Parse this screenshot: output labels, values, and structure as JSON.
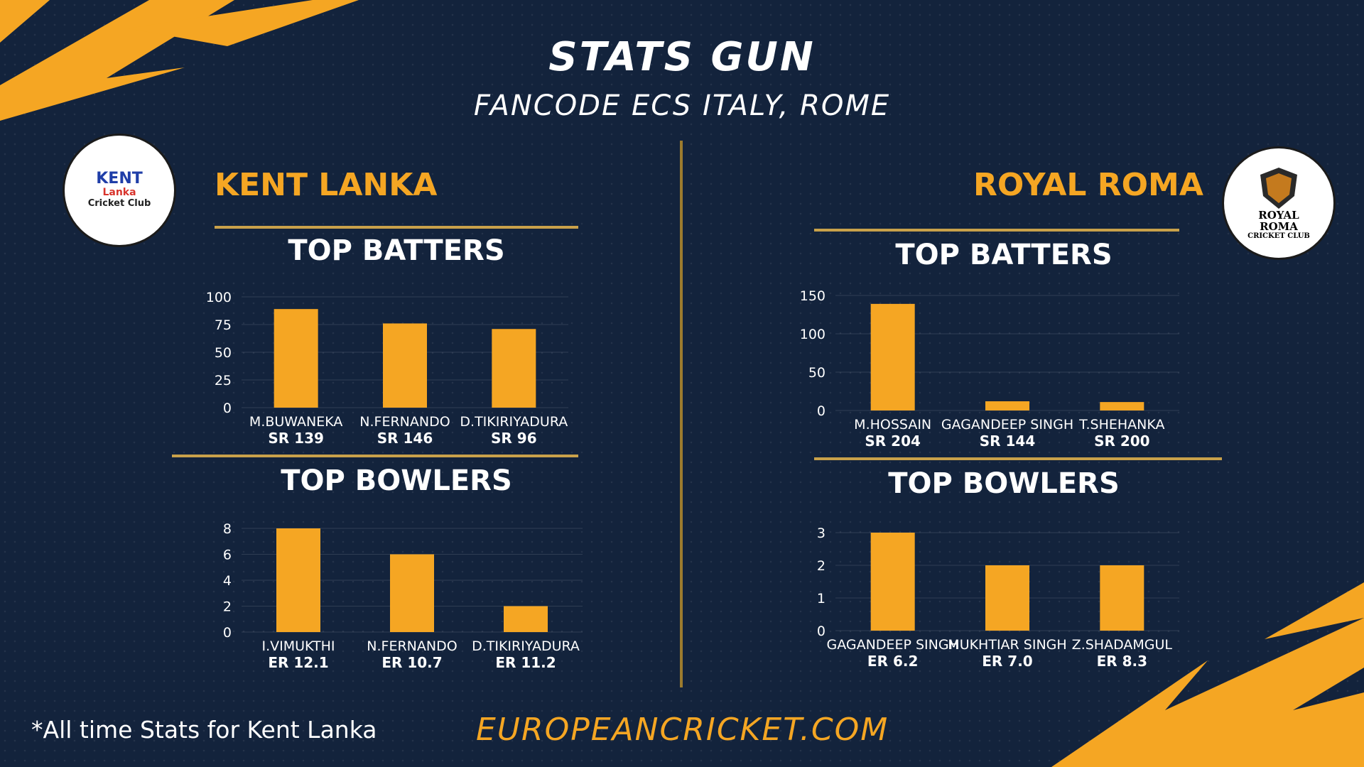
{
  "header": {
    "title": "STATS GUN",
    "subtitle": "FANCODE ECS ITALY, ROME"
  },
  "colors": {
    "background": "#13233c",
    "accent": "#f5a623",
    "rule": "#c9a14a",
    "text": "#ffffff"
  },
  "teams": {
    "left": {
      "name": "KENT LANKA",
      "logo": {
        "line1": "KENT",
        "line2": "Lanka",
        "line3": "Cricket Club"
      }
    },
    "right": {
      "name": "ROYAL ROMA",
      "logo": {
        "line1": "ROYAL",
        "line2": "ROMA",
        "line3": "CRICKET CLUB"
      }
    }
  },
  "sections": {
    "batters_title": "TOP BATTERS",
    "bowlers_title": "TOP BOWLERS"
  },
  "chart_data": [
    {
      "id": "kent-batters",
      "type": "bar",
      "title": "TOP BATTERS",
      "categories": [
        "M.BUWANEKA",
        "N.FERNANDO",
        "D.TIKIRIYADURA"
      ],
      "values": [
        89,
        76,
        71
      ],
      "sublabels": [
        "SR 139",
        "SR 146",
        "SR 96"
      ],
      "ylim": [
        0,
        100
      ],
      "yticks": [
        0,
        25,
        50,
        75,
        100
      ],
      "grid": true,
      "color": "#f5a623"
    },
    {
      "id": "kent-bowlers",
      "type": "bar",
      "title": "TOP BOWLERS",
      "categories": [
        "I.VIMUKTHI",
        "N.FERNANDO",
        "D.TIKIRIYADURA"
      ],
      "values": [
        8,
        6,
        2
      ],
      "sublabels": [
        "ER 12.1",
        "ER 10.7",
        "ER 11.2"
      ],
      "ylim": [
        0,
        8
      ],
      "yticks": [
        0,
        2,
        4,
        6,
        8
      ],
      "grid": true,
      "color": "#f5a623"
    },
    {
      "id": "roma-batters",
      "type": "bar",
      "title": "TOP BATTERS",
      "categories": [
        "M.HOSSAIN",
        "GAGANDEEP SINGH",
        "T.SHEHANKA"
      ],
      "values": [
        139,
        12,
        11
      ],
      "sublabels": [
        "SR 204",
        "SR 144",
        "SR 200"
      ],
      "ylim": [
        0,
        150
      ],
      "yticks": [
        0,
        50,
        100,
        150
      ],
      "grid": true,
      "color": "#f5a623"
    },
    {
      "id": "roma-bowlers",
      "type": "bar",
      "title": "TOP BOWLERS",
      "categories": [
        "GAGANDEEP SINGH",
        "MUKHTIAR SINGH",
        "Z.SHADAMGUL"
      ],
      "values": [
        3,
        2,
        2
      ],
      "sublabels": [
        "ER 6.2",
        "ER 7.0",
        "ER 8.3"
      ],
      "ylim": [
        0,
        3
      ],
      "yticks": [
        0,
        1,
        2,
        3
      ],
      "grid": true,
      "color": "#f5a623"
    }
  ],
  "footer": {
    "note": "*All time Stats for Kent Lanka",
    "site": "EUROPEANCRICKET.COM"
  }
}
